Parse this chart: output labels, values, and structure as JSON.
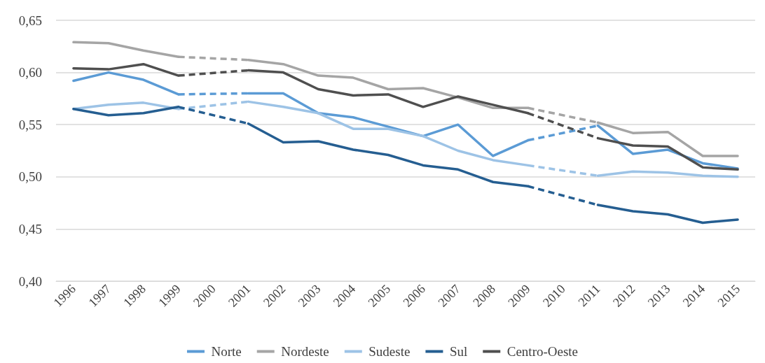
{
  "chart_data": {
    "type": "line",
    "categories": [
      "1996",
      "1997",
      "1998",
      "1999",
      "2000",
      "2001",
      "2002",
      "2003",
      "2004",
      "2005",
      "2006",
      "2007",
      "2008",
      "2009",
      "2010",
      "2011",
      "2012",
      "2013",
      "2014",
      "2015"
    ],
    "series": [
      {
        "name": "Norte",
        "color": "#5b9bd5",
        "values": [
          0.592,
          0.6,
          0.593,
          0.579,
          null,
          0.58,
          0.58,
          0.561,
          0.557,
          0.548,
          0.539,
          0.55,
          0.52,
          0.535,
          null,
          0.549,
          0.522,
          0.526,
          0.513,
          0.508
        ]
      },
      {
        "name": "Nordeste",
        "color": "#a5a5a5",
        "values": [
          0.629,
          0.628,
          0.621,
          0.615,
          null,
          0.612,
          0.608,
          0.597,
          0.595,
          0.584,
          0.585,
          0.576,
          0.566,
          0.566,
          null,
          0.552,
          0.542,
          0.543,
          0.52,
          0.52
        ]
      },
      {
        "name": "Sudeste",
        "color": "#9dc3e6",
        "values": [
          0.565,
          0.569,
          0.571,
          0.565,
          null,
          0.572,
          0.567,
          0.561,
          0.546,
          0.546,
          0.539,
          0.525,
          0.516,
          0.511,
          null,
          0.501,
          0.505,
          0.504,
          0.501,
          0.5
        ]
      },
      {
        "name": "Sul",
        "color": "#255e91",
        "values": [
          0.565,
          0.559,
          0.561,
          0.567,
          null,
          0.551,
          0.533,
          0.534,
          0.526,
          0.521,
          0.511,
          0.507,
          0.495,
          0.491,
          null,
          0.473,
          0.467,
          0.464,
          0.456,
          0.459
        ]
      },
      {
        "name": "Centro-Oeste",
        "color": "#4f4f4f",
        "values": [
          0.604,
          0.603,
          0.608,
          0.597,
          null,
          0.602,
          0.6,
          0.584,
          0.578,
          0.579,
          0.567,
          0.577,
          0.569,
          0.561,
          null,
          0.537,
          0.53,
          0.529,
          0.509,
          0.507
        ]
      }
    ],
    "ylim": [
      0.4,
      0.65
    ],
    "yticks": [
      {
        "value": 0.4,
        "label": "0,40"
      },
      {
        "value": 0.45,
        "label": "0,45"
      },
      {
        "value": 0.5,
        "label": "0,50"
      },
      {
        "value": 0.55,
        "label": "0,55"
      },
      {
        "value": 0.6,
        "label": "0,60"
      },
      {
        "value": 0.65,
        "label": "0,65"
      }
    ],
    "grid": "y",
    "legend": "bottom",
    "marker": "none",
    "line_style": "solid"
  }
}
